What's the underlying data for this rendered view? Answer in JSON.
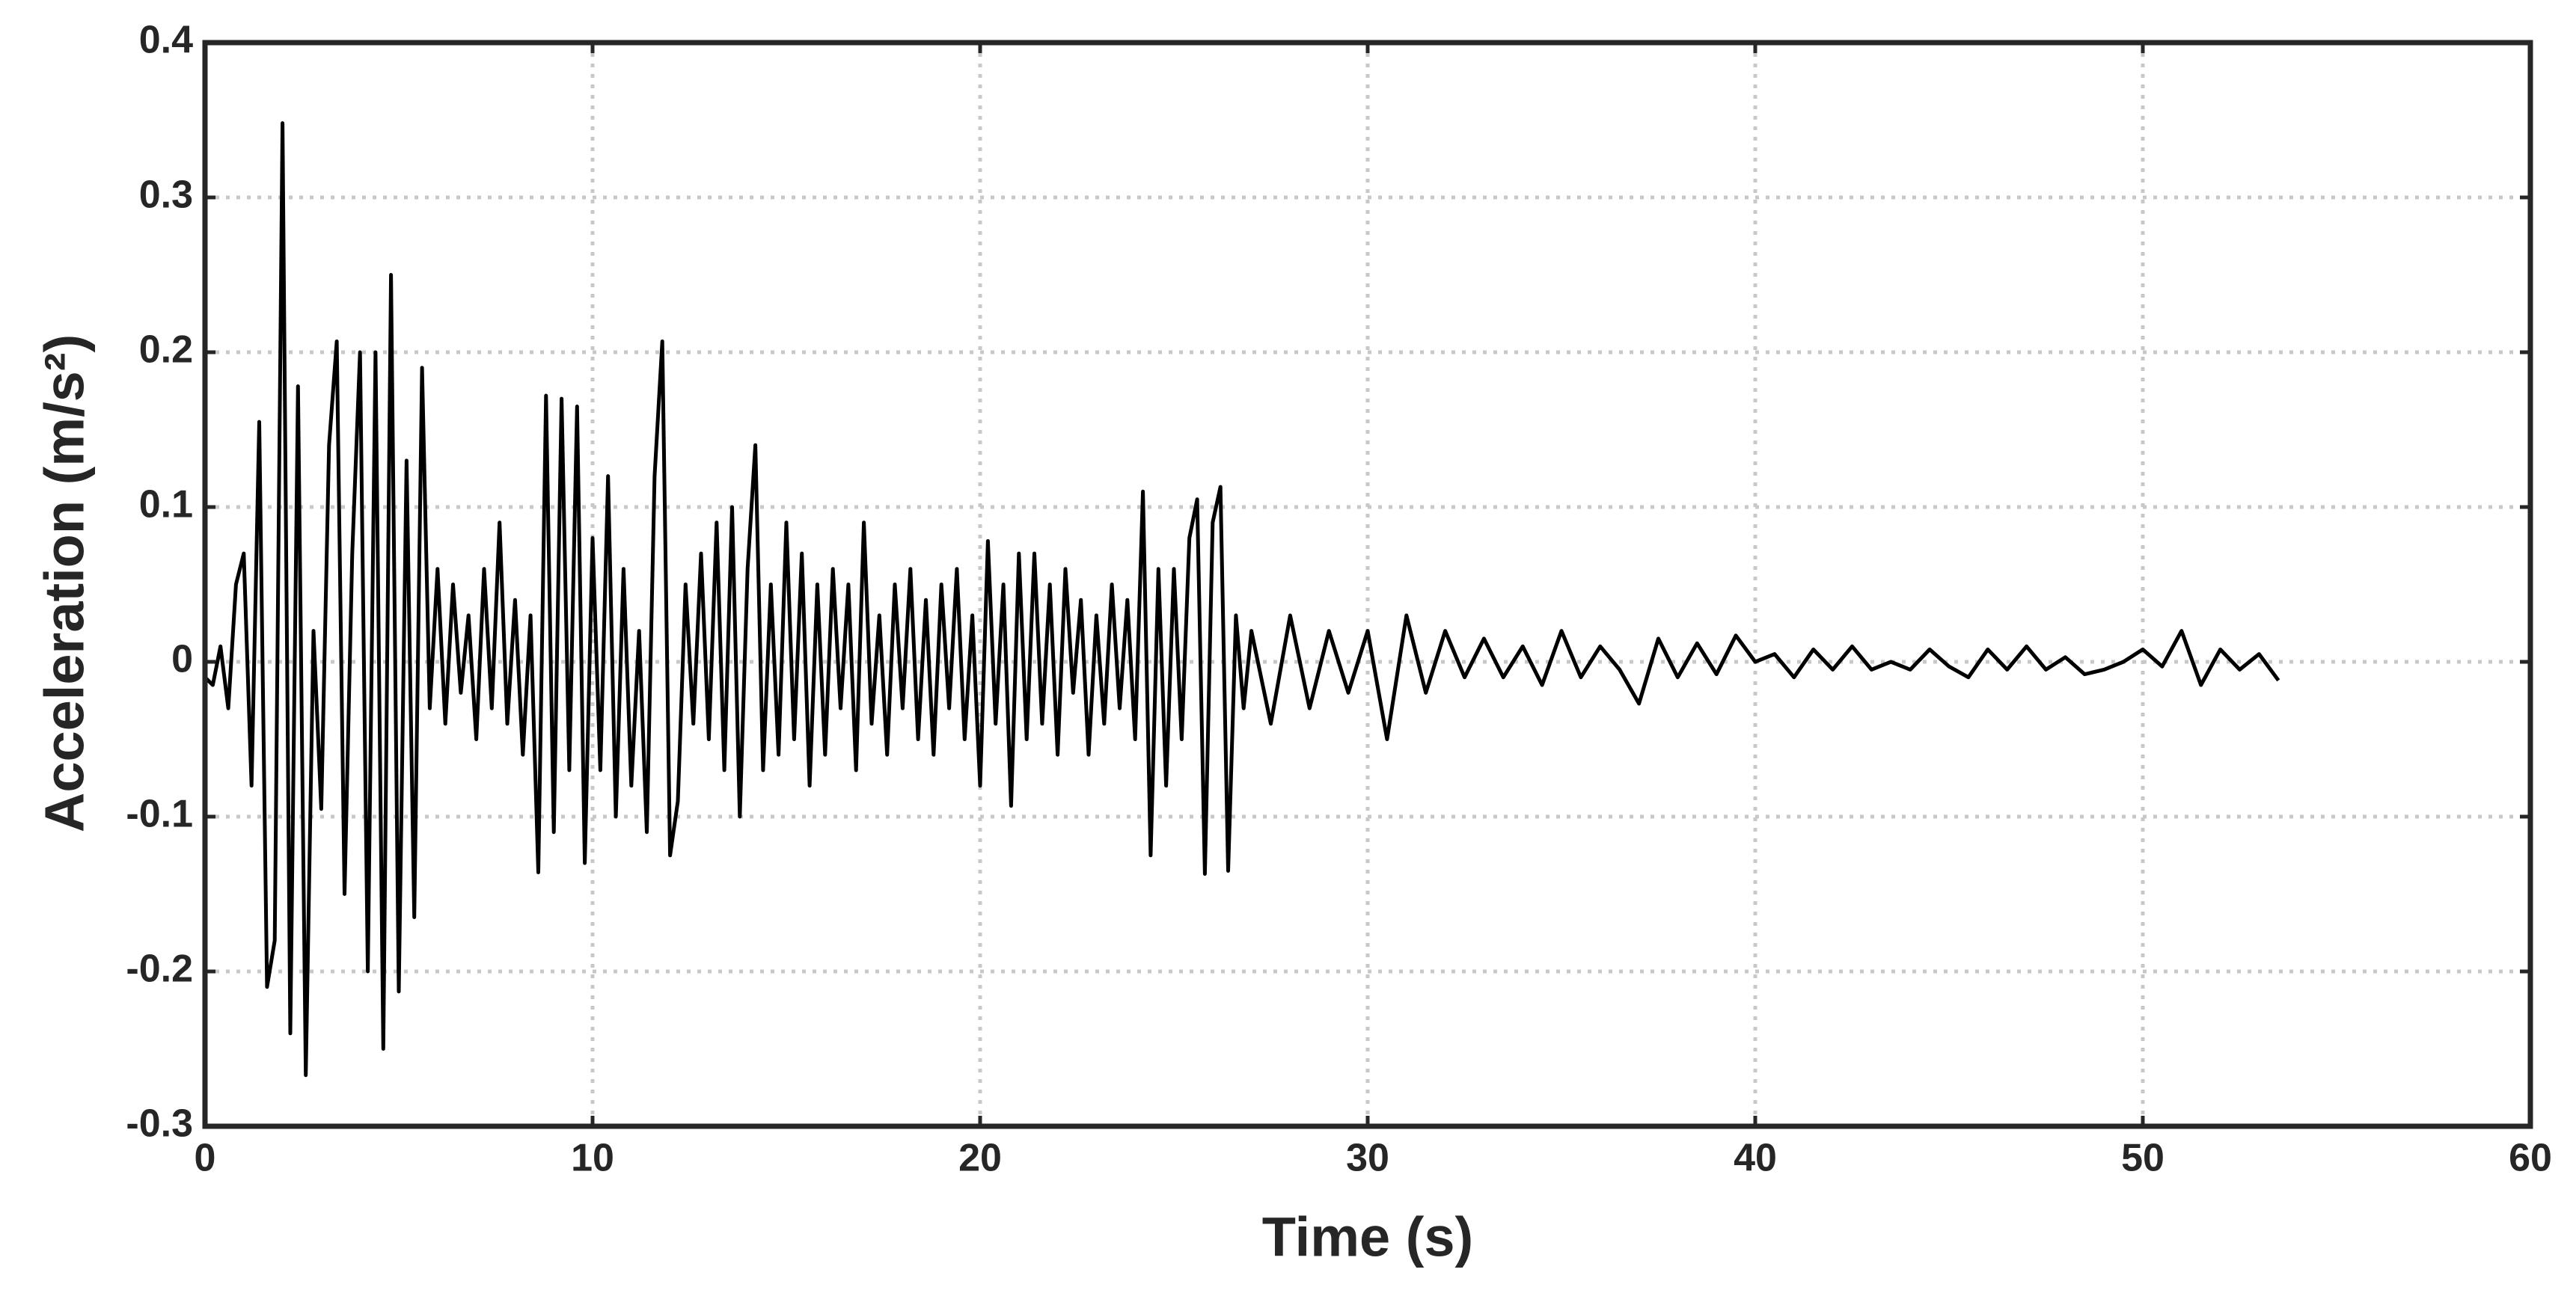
{
  "chart_data": {
    "type": "line",
    "xlabel": "Time (s)",
    "ylabel": "Acceleration (m/s²)",
    "xlim": [
      0,
      60
    ],
    "xticks": [
      0,
      10,
      20,
      30,
      40,
      50,
      60
    ],
    "ylim": [
      -0.3,
      0.4
    ],
    "yticks": [
      -0.3,
      -0.2,
      -0.1,
      0,
      0.1,
      0.2,
      0.3,
      0.4
    ],
    "grid": true,
    "color": "#000000",
    "x": [
      0,
      0.2,
      0.4,
      0.6,
      0.8,
      1,
      1.2,
      1.4,
      1.6,
      1.8,
      2,
      2.2,
      2.4,
      2.6,
      2.8,
      3,
      3.2,
      3.4,
      3.6,
      3.8,
      4,
      4.2,
      4.4,
      4.6,
      4.8,
      5,
      5.2,
      5.4,
      5.6,
      5.8,
      6,
      6.2,
      6.4,
      6.6,
      6.8,
      7,
      7.2,
      7.4,
      7.6,
      7.8,
      8,
      8.2,
      8.4,
      8.6,
      8.8,
      9,
      9.2,
      9.4,
      9.6,
      9.8,
      10,
      10.2,
      10.4,
      10.6,
      10.8,
      11,
      11.2,
      11.4,
      11.6,
      11.8,
      12,
      12.2,
      12.4,
      12.6,
      12.8,
      13,
      13.2,
      13.4,
      13.6,
      13.8,
      14,
      14.2,
      14.4,
      14.6,
      14.8,
      15,
      15.2,
      15.4,
      15.6,
      15.8,
      16,
      16.2,
      16.4,
      16.6,
      16.8,
      17,
      17.2,
      17.4,
      17.6,
      17.8,
      18,
      18.2,
      18.4,
      18.6,
      18.8,
      19,
      19.2,
      19.4,
      19.6,
      19.8,
      20,
      20.2,
      20.4,
      20.6,
      20.8,
      21,
      21.2,
      21.4,
      21.6,
      21.8,
      22,
      22.2,
      22.4,
      22.6,
      22.8,
      23,
      23.2,
      23.4,
      23.6,
      23.8,
      24,
      24.2,
      24.4,
      24.6,
      24.8,
      25,
      25.2,
      25.4,
      25.6,
      25.8,
      26,
      26.2,
      26.4,
      26.6,
      26.8,
      27,
      27.5,
      28,
      28.5,
      29,
      29.5,
      30,
      30.5,
      31,
      31.5,
      32,
      32.5,
      33,
      33.5,
      34,
      34.5,
      35,
      35.5,
      36,
      36.5,
      37,
      37.5,
      38,
      38.5,
      39,
      39.5,
      40,
      40.5,
      41,
      41.5,
      42,
      42.5,
      43,
      43.5,
      44,
      44.5,
      45,
      45.5,
      46,
      46.5,
      47,
      47.5,
      48,
      48.5,
      49,
      49.5,
      50,
      50.5,
      51,
      51.5,
      52,
      52.5,
      53,
      53.5
    ],
    "values": [
      -0.01,
      -0.015,
      0.01,
      -0.03,
      0.05,
      0.07,
      -0.08,
      0.155,
      -0.21,
      -0.18,
      0.348,
      -0.24,
      0.178,
      -0.267,
      0.02,
      -0.095,
      0.14,
      0.207,
      -0.15,
      0.07,
      0.2,
      -0.2,
      0.2,
      -0.25,
      0.25,
      -0.213,
      0.13,
      -0.165,
      0.19,
      -0.03,
      0.06,
      -0.04,
      0.05,
      -0.02,
      0.03,
      -0.05,
      0.06,
      -0.03,
      0.09,
      -0.04,
      0.04,
      -0.06,
      0.03,
      -0.136,
      0.172,
      -0.11,
      0.17,
      -0.07,
      0.165,
      -0.13,
      0.08,
      -0.07,
      0.12,
      -0.1,
      0.06,
      -0.08,
      0.02,
      -0.11,
      0.12,
      0.207,
      -0.125,
      -0.09,
      0.05,
      -0.04,
      0.07,
      -0.05,
      0.09,
      -0.07,
      0.1,
      -0.1,
      0.06,
      0.14,
      -0.07,
      0.05,
      -0.06,
      0.09,
      -0.05,
      0.07,
      -0.08,
      0.05,
      -0.06,
      0.06,
      -0.03,
      0.05,
      -0.07,
      0.09,
      -0.04,
      0.03,
      -0.06,
      0.05,
      -0.03,
      0.06,
      -0.05,
      0.04,
      -0.06,
      0.05,
      -0.03,
      0.06,
      -0.05,
      0.03,
      -0.08,
      0.078,
      -0.04,
      0.05,
      -0.093,
      0.07,
      -0.05,
      0.07,
      -0.04,
      0.05,
      -0.06,
      0.06,
      -0.02,
      0.04,
      -0.06,
      0.03,
      -0.04,
      0.05,
      -0.03,
      0.04,
      -0.05,
      0.11,
      -0.125,
      0.06,
      -0.08,
      0.06,
      -0.05,
      0.08,
      0.105,
      -0.137,
      0.09,
      0.113,
      -0.135,
      0.03,
      -0.03,
      0.02,
      -0.04,
      0.03,
      -0.03,
      0.02,
      -0.02,
      0.02,
      -0.05,
      0.03,
      -0.02,
      0.02,
      -0.01,
      0.015,
      -0.01,
      0.01,
      -0.015,
      0.02,
      -0.01,
      0.01,
      -0.005,
      -0.027,
      0.015,
      -0.01,
      0.012,
      -0.008,
      0.017,
      0,
      0.005,
      -0.01,
      0.008,
      -0.005,
      0.01,
      -0.005,
      0,
      -0.005,
      0.008,
      -0.003,
      -0.01,
      0.008,
      -0.005,
      0.01,
      -0.005,
      0.003,
      -0.008,
      -0.005,
      0,
      0.008,
      -0.003,
      0.02,
      -0.015,
      0.008,
      -0.005,
      0.005,
      -0.012
    ]
  }
}
